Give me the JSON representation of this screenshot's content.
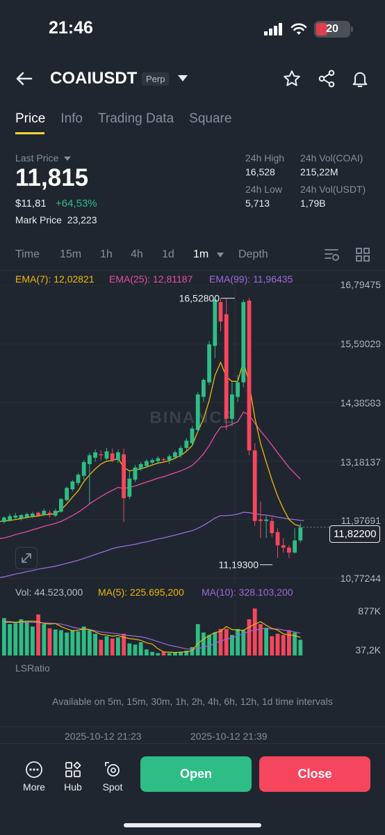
{
  "status": {
    "time": "21:46",
    "battery": "20"
  },
  "header": {
    "symbol": "COAIUSDT",
    "badge": "Perp"
  },
  "tabs": [
    "Price",
    "Info",
    "Trading Data",
    "Square"
  ],
  "price": {
    "last_label": "Last Price",
    "last": "11,815",
    "usd": "$11,81",
    "change": "+64,53%",
    "mark_label": "Mark Price",
    "mark": "23,223"
  },
  "stats": {
    "high_label": "24h High",
    "high": "16,528",
    "low_label": "24h Low",
    "low": "5,713",
    "vol_coin_label": "24h Vol(COAI)",
    "vol_coin": "215,22M",
    "vol_usdt_label": "24h Vol(USDT)",
    "vol_usdt": "1,79B"
  },
  "timeframes": [
    "Time",
    "15m",
    "1h",
    "4h",
    "1d",
    "1m",
    "Depth"
  ],
  "active_timeframe": "1m",
  "ema": {
    "ema7": "EMA(7): 12,02821",
    "ema25": "EMA(25): 12,81187",
    "ema99": "EMA(99): 11,96435"
  },
  "axis": [
    "16,79475",
    "15,59029",
    "14,38583",
    "13,18137",
    "11,97691",
    "10,77244"
  ],
  "current_price_tag": "11,82200",
  "high_marker": "16,52800",
  "low_marker": "11,19300",
  "watermark": "BINANCE",
  "volume": {
    "vol": "Vol: 44.523,000",
    "ma5": "MA(5): 225.695,200",
    "ma10": "MA(10): 328.103,200",
    "axis_top": "877K",
    "axis_bottom": "37,2K"
  },
  "ls_label": "LSRatio",
  "ls_note": "Available on 5m, 15m, 30m, 1h, 2h, 4h, 6h, 12h, 1d time intervals",
  "dates": [
    "2025-10-12 21:23",
    "2025-10-12 21:39"
  ],
  "bottom": {
    "more": "More",
    "hub": "Hub",
    "spot": "Spot",
    "open": "Open",
    "close": "Close"
  },
  "colors": {
    "up": "#2ebd85",
    "down": "#f6465d",
    "ema7": "#f0b90b",
    "ema25": "#e64da5",
    "ema99": "#9c6ade"
  },
  "chart_data": {
    "type": "candlestick",
    "interval": "1m",
    "candles": [
      {
        "o": 11.93,
        "h": 12.05,
        "l": 11.9,
        "c": 12.02
      },
      {
        "o": 11.97,
        "h": 12.1,
        "l": 11.94,
        "c": 12.05
      },
      {
        "o": 12.02,
        "h": 12.12,
        "l": 11.98,
        "c": 12.06
      },
      {
        "o": 12.0,
        "h": 12.09,
        "l": 11.96,
        "c": 12.07
      },
      {
        "o": 12.03,
        "h": 12.12,
        "l": 12.0,
        "c": 12.09
      },
      {
        "o": 12.05,
        "h": 12.14,
        "l": 12.01,
        "c": 12.1
      },
      {
        "o": 12.12,
        "h": 12.14,
        "l": 12.03,
        "c": 12.06
      },
      {
        "o": 12.08,
        "h": 12.2,
        "l": 12.05,
        "c": 12.16
      },
      {
        "o": 12.12,
        "h": 12.17,
        "l": 12.02,
        "c": 12.08
      },
      {
        "o": 12.06,
        "h": 12.2,
        "l": 12.03,
        "c": 12.16
      },
      {
        "o": 12.14,
        "h": 12.42,
        "l": 12.12,
        "c": 12.4
      },
      {
        "o": 12.38,
        "h": 12.66,
        "l": 12.35,
        "c": 12.63
      },
      {
        "o": 12.6,
        "h": 12.79,
        "l": 12.56,
        "c": 12.76
      },
      {
        "o": 12.73,
        "h": 12.94,
        "l": 12.68,
        "c": 12.9
      },
      {
        "o": 12.88,
        "h": 13.2,
        "l": 12.8,
        "c": 13.16
      },
      {
        "o": 13.12,
        "h": 13.35,
        "l": 12.3,
        "c": 13.3
      },
      {
        "o": 13.25,
        "h": 13.42,
        "l": 13.17,
        "c": 13.36
      },
      {
        "o": 13.32,
        "h": 13.4,
        "l": 13.2,
        "c": 13.3
      },
      {
        "o": 13.23,
        "h": 13.45,
        "l": 13.2,
        "c": 13.38
      },
      {
        "o": 13.34,
        "h": 13.44,
        "l": 13.15,
        "c": 13.2
      },
      {
        "o": 13.2,
        "h": 13.42,
        "l": 13.14,
        "c": 13.36
      },
      {
        "o": 13.32,
        "h": 13.44,
        "l": 11.93,
        "c": 12.42
      },
      {
        "o": 12.45,
        "h": 12.98,
        "l": 12.4,
        "c": 12.82
      },
      {
        "o": 12.8,
        "h": 13.1,
        "l": 12.75,
        "c": 13.05
      },
      {
        "o": 13.02,
        "h": 13.16,
        "l": 12.98,
        "c": 13.12
      },
      {
        "o": 13.08,
        "h": 13.22,
        "l": 13.04,
        "c": 13.18
      },
      {
        "o": 13.15,
        "h": 13.24,
        "l": 13.1,
        "c": 13.2
      },
      {
        "o": 13.18,
        "h": 13.28,
        "l": 13.12,
        "c": 13.24
      },
      {
        "o": 13.22,
        "h": 13.25,
        "l": 13.16,
        "c": 13.2
      },
      {
        "o": 13.2,
        "h": 13.32,
        "l": 13.12,
        "c": 13.28
      },
      {
        "o": 13.26,
        "h": 13.4,
        "l": 13.22,
        "c": 13.36
      },
      {
        "o": 13.3,
        "h": 13.5,
        "l": 13.25,
        "c": 13.45
      },
      {
        "o": 13.45,
        "h": 13.65,
        "l": 13.4,
        "c": 13.6
      },
      {
        "o": 13.55,
        "h": 13.9,
        "l": 13.5,
        "c": 13.85
      },
      {
        "o": 13.82,
        "h": 14.6,
        "l": 13.78,
        "c": 14.55
      },
      {
        "o": 14.5,
        "h": 14.88,
        "l": 14.4,
        "c": 14.85
      },
      {
        "o": 14.8,
        "h": 15.65,
        "l": 14.75,
        "c": 15.58
      },
      {
        "o": 15.55,
        "h": 16.53,
        "l": 15.3,
        "c": 16.5
      },
      {
        "o": 16.45,
        "h": 16.53,
        "l": 15.85,
        "c": 16.05
      },
      {
        "o": 16.2,
        "h": 16.53,
        "l": 13.82,
        "c": 14.05
      },
      {
        "o": 14.05,
        "h": 14.8,
        "l": 13.9,
        "c": 14.55
      },
      {
        "o": 14.5,
        "h": 14.95,
        "l": 14.4,
        "c": 14.8
      },
      {
        "o": 14.8,
        "h": 16.5,
        "l": 14.7,
        "c": 16.45
      },
      {
        "o": 16.48,
        "h": 16.53,
        "l": 13.3,
        "c": 13.4
      },
      {
        "o": 13.4,
        "h": 13.55,
        "l": 11.85,
        "c": 11.95
      },
      {
        "o": 11.98,
        "h": 12.35,
        "l": 11.6,
        "c": 11.95
      },
      {
        "o": 11.95,
        "h": 12.05,
        "l": 11.6,
        "c": 11.98
      },
      {
        "o": 11.95,
        "h": 12.02,
        "l": 11.62,
        "c": 11.7
      },
      {
        "o": 11.72,
        "h": 11.8,
        "l": 11.19,
        "c": 11.45
      },
      {
        "o": 11.45,
        "h": 11.6,
        "l": 11.3,
        "c": 11.4
      },
      {
        "o": 11.4,
        "h": 11.45,
        "l": 11.19,
        "c": 11.3
      },
      {
        "o": 11.3,
        "h": 11.8,
        "l": 11.28,
        "c": 11.55
      },
      {
        "o": 11.55,
        "h": 11.9,
        "l": 11.5,
        "c": 11.82
      }
    ],
    "volumes": [
      620,
      520,
      540,
      600,
      560,
      480,
      680,
      520,
      450,
      430,
      420,
      380,
      420,
      400,
      480,
      420,
      360,
      260,
      320,
      280,
      300,
      360,
      200,
      180,
      220,
      100,
      60,
      40,
      60,
      40,
      50,
      60,
      80,
      140,
      520,
      380,
      340,
      380,
      440,
      440,
      340,
      440,
      420,
      600,
      780,
      520,
      460,
      320,
      360,
      340,
      420,
      380,
      260
    ],
    "ema7": [
      11.95,
      11.96,
      11.98,
      12.0,
      12.02,
      12.04,
      12.05,
      12.08,
      12.08,
      12.1,
      12.18,
      12.3,
      12.44,
      12.57,
      12.76,
      12.9,
      13.02,
      13.12,
      13.18,
      13.19,
      13.24,
      13.05,
      12.98,
      13.0,
      13.02,
      13.06,
      13.1,
      13.14,
      13.16,
      13.19,
      13.24,
      13.3,
      13.38,
      13.5,
      13.79,
      14.05,
      14.43,
      14.94,
      15.21,
      14.91,
      14.82,
      14.82,
      15.23,
      14.78,
      14.07,
      13.55,
      13.16,
      12.79,
      12.46,
      12.2,
      11.98,
      11.88,
      11.84
    ],
    "ema25": [
      11.6,
      11.63,
      11.67,
      11.7,
      11.73,
      11.77,
      11.8,
      11.84,
      11.87,
      11.9,
      11.94,
      12.0,
      12.06,
      12.13,
      12.21,
      12.3,
      12.38,
      12.45,
      12.52,
      12.58,
      12.64,
      12.62,
      12.64,
      12.67,
      12.71,
      12.75,
      12.79,
      12.83,
      12.86,
      12.9,
      12.94,
      12.98,
      13.03,
      13.09,
      13.2,
      13.33,
      13.5,
      13.71,
      13.88,
      13.89,
      13.94,
      13.99,
      14.19,
      14.13,
      13.96,
      13.8,
      13.66,
      13.51,
      13.35,
      13.2,
      13.05,
      12.93,
      12.81
    ],
    "ema99": [
      10.8,
      10.83,
      10.86,
      10.88,
      10.91,
      10.93,
      10.96,
      10.98,
      11.0,
      11.02,
      11.05,
      11.08,
      11.11,
      11.14,
      11.18,
      11.22,
      11.26,
      11.3,
      11.34,
      11.38,
      11.41,
      11.43,
      11.45,
      11.47,
      11.5,
      11.52,
      11.55,
      11.58,
      11.6,
      11.63,
      11.66,
      11.69,
      11.72,
      11.75,
      11.8,
      11.86,
      11.93,
      12.01,
      12.06,
      12.06,
      12.07,
      12.09,
      12.13,
      12.12,
      12.1,
      12.08,
      12.07,
      12.05,
      12.03,
      12.01,
      11.99,
      11.98,
      11.96
    ],
    "ma5_vol": [
      560,
      560,
      550,
      560,
      570,
      570,
      560,
      530,
      520,
      530,
      480,
      440,
      410,
      420,
      440,
      430,
      390,
      350,
      340,
      320,
      330,
      300,
      280,
      270,
      250,
      210,
      190,
      110,
      60,
      55,
      50,
      55,
      60,
      80,
      200,
      270,
      330,
      380,
      400,
      480,
      430,
      420,
      420,
      470,
      520,
      560,
      500,
      450,
      420,
      360,
      340,
      330,
      300
    ],
    "ma10_vol": [
      550,
      550,
      550,
      550,
      550,
      550,
      545,
      540,
      535,
      530,
      520,
      500,
      470,
      450,
      440,
      430,
      410,
      390,
      380,
      370,
      360,
      340,
      330,
      320,
      310,
      290,
      260,
      230,
      200,
      170,
      150,
      130,
      110,
      100,
      110,
      140,
      160,
      200,
      240,
      270,
      290,
      330,
      360,
      400,
      420,
      440,
      450,
      440,
      440,
      420,
      410,
      390,
      370
    ]
  }
}
